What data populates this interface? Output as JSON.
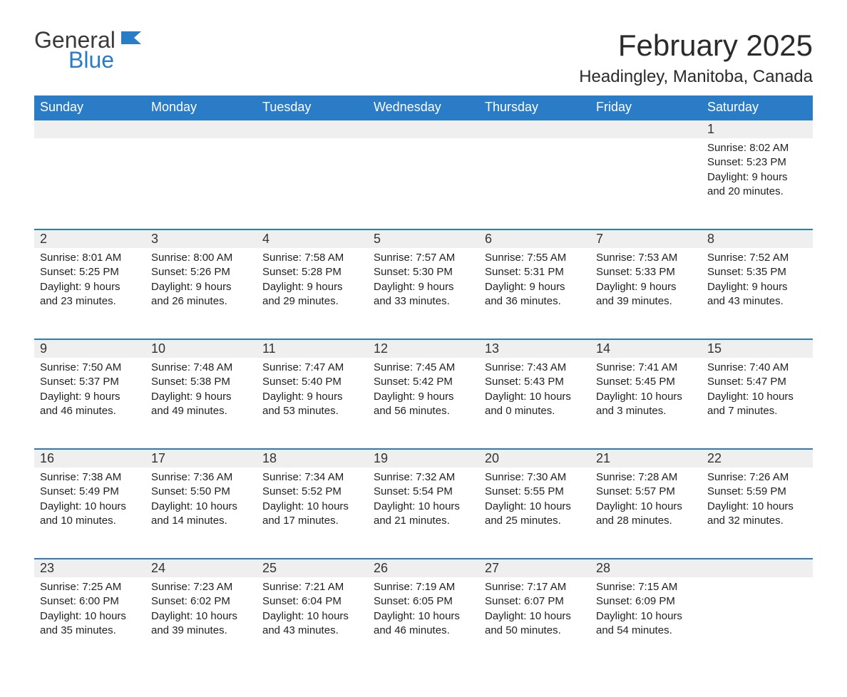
{
  "logo": {
    "text1": "General",
    "text2": "Blue",
    "icon_color": "#2a7cc7"
  },
  "title": "February 2025",
  "location": "Headingley, Manitoba, Canada",
  "colors": {
    "header_bg": "#2a7cc7",
    "header_text": "#ffffff",
    "daynum_bg": "#efefef",
    "row_border": "#2a7cc7",
    "body_text": "#222222",
    "page_bg": "#ffffff"
  },
  "weekdays": [
    "Sunday",
    "Monday",
    "Tuesday",
    "Wednesday",
    "Thursday",
    "Friday",
    "Saturday"
  ],
  "weeks": [
    {
      "days": [
        null,
        null,
        null,
        null,
        null,
        null,
        {
          "n": "1",
          "sunrise": "8:02 AM",
          "sunset": "5:23 PM",
          "daylight": "9 hours and 20 minutes."
        }
      ]
    },
    {
      "days": [
        {
          "n": "2",
          "sunrise": "8:01 AM",
          "sunset": "5:25 PM",
          "daylight": "9 hours and 23 minutes."
        },
        {
          "n": "3",
          "sunrise": "8:00 AM",
          "sunset": "5:26 PM",
          "daylight": "9 hours and 26 minutes."
        },
        {
          "n": "4",
          "sunrise": "7:58 AM",
          "sunset": "5:28 PM",
          "daylight": "9 hours and 29 minutes."
        },
        {
          "n": "5",
          "sunrise": "7:57 AM",
          "sunset": "5:30 PM",
          "daylight": "9 hours and 33 minutes."
        },
        {
          "n": "6",
          "sunrise": "7:55 AM",
          "sunset": "5:31 PM",
          "daylight": "9 hours and 36 minutes."
        },
        {
          "n": "7",
          "sunrise": "7:53 AM",
          "sunset": "5:33 PM",
          "daylight": "9 hours and 39 minutes."
        },
        {
          "n": "8",
          "sunrise": "7:52 AM",
          "sunset": "5:35 PM",
          "daylight": "9 hours and 43 minutes."
        }
      ]
    },
    {
      "days": [
        {
          "n": "9",
          "sunrise": "7:50 AM",
          "sunset": "5:37 PM",
          "daylight": "9 hours and 46 minutes."
        },
        {
          "n": "10",
          "sunrise": "7:48 AM",
          "sunset": "5:38 PM",
          "daylight": "9 hours and 49 minutes."
        },
        {
          "n": "11",
          "sunrise": "7:47 AM",
          "sunset": "5:40 PM",
          "daylight": "9 hours and 53 minutes."
        },
        {
          "n": "12",
          "sunrise": "7:45 AM",
          "sunset": "5:42 PM",
          "daylight": "9 hours and 56 minutes."
        },
        {
          "n": "13",
          "sunrise": "7:43 AM",
          "sunset": "5:43 PM",
          "daylight": "10 hours and 0 minutes."
        },
        {
          "n": "14",
          "sunrise": "7:41 AM",
          "sunset": "5:45 PM",
          "daylight": "10 hours and 3 minutes."
        },
        {
          "n": "15",
          "sunrise": "7:40 AM",
          "sunset": "5:47 PM",
          "daylight": "10 hours and 7 minutes."
        }
      ]
    },
    {
      "days": [
        {
          "n": "16",
          "sunrise": "7:38 AM",
          "sunset": "5:49 PM",
          "daylight": "10 hours and 10 minutes."
        },
        {
          "n": "17",
          "sunrise": "7:36 AM",
          "sunset": "5:50 PM",
          "daylight": "10 hours and 14 minutes."
        },
        {
          "n": "18",
          "sunrise": "7:34 AM",
          "sunset": "5:52 PM",
          "daylight": "10 hours and 17 minutes."
        },
        {
          "n": "19",
          "sunrise": "7:32 AM",
          "sunset": "5:54 PM",
          "daylight": "10 hours and 21 minutes."
        },
        {
          "n": "20",
          "sunrise": "7:30 AM",
          "sunset": "5:55 PM",
          "daylight": "10 hours and 25 minutes."
        },
        {
          "n": "21",
          "sunrise": "7:28 AM",
          "sunset": "5:57 PM",
          "daylight": "10 hours and 28 minutes."
        },
        {
          "n": "22",
          "sunrise": "7:26 AM",
          "sunset": "5:59 PM",
          "daylight": "10 hours and 32 minutes."
        }
      ]
    },
    {
      "days": [
        {
          "n": "23",
          "sunrise": "7:25 AM",
          "sunset": "6:00 PM",
          "daylight": "10 hours and 35 minutes."
        },
        {
          "n": "24",
          "sunrise": "7:23 AM",
          "sunset": "6:02 PM",
          "daylight": "10 hours and 39 minutes."
        },
        {
          "n": "25",
          "sunrise": "7:21 AM",
          "sunset": "6:04 PM",
          "daylight": "10 hours and 43 minutes."
        },
        {
          "n": "26",
          "sunrise": "7:19 AM",
          "sunset": "6:05 PM",
          "daylight": "10 hours and 46 minutes."
        },
        {
          "n": "27",
          "sunrise": "7:17 AM",
          "sunset": "6:07 PM",
          "daylight": "10 hours and 50 minutes."
        },
        {
          "n": "28",
          "sunrise": "7:15 AM",
          "sunset": "6:09 PM",
          "daylight": "10 hours and 54 minutes."
        },
        null
      ]
    }
  ],
  "labels": {
    "sunrise": "Sunrise: ",
    "sunset": "Sunset: ",
    "daylight": "Daylight: "
  }
}
